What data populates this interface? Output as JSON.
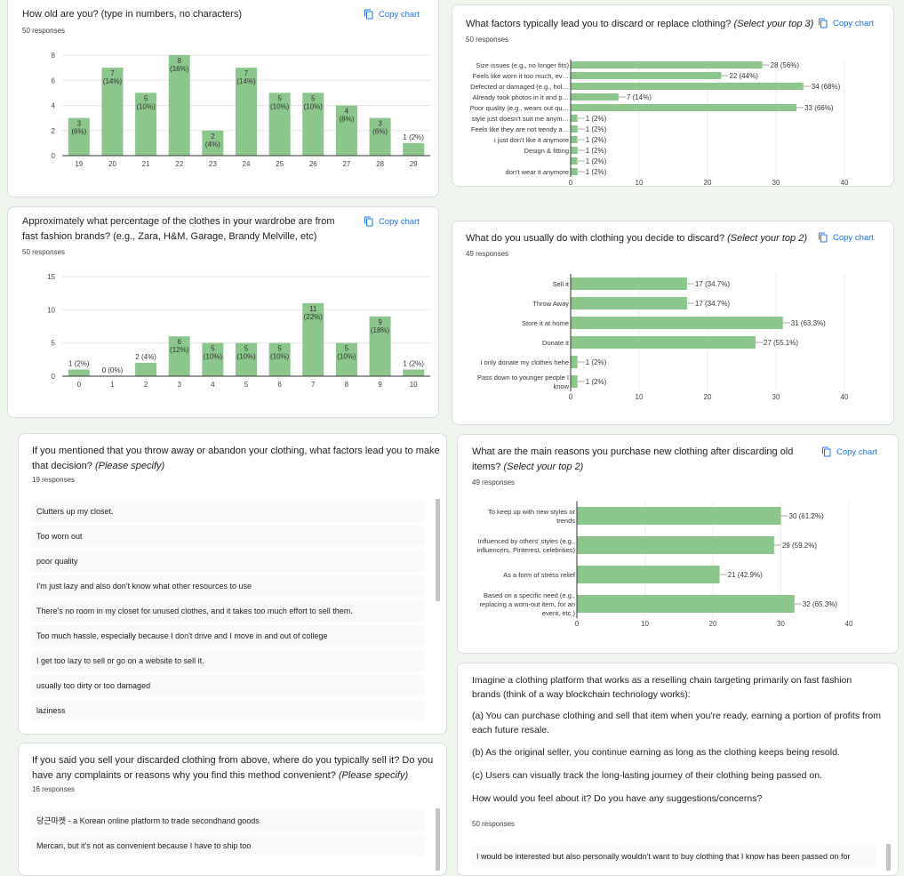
{
  "copy_chart_label": "Copy chart",
  "icons": {
    "copy": "copy-icon"
  },
  "colors": {
    "bar": "#8bc68a",
    "accent": "#1a73e8",
    "background": "#eef5ec"
  },
  "cards": {
    "age": {
      "title": "How old are you? (type in numbers, no characters)",
      "responses": "50 responses"
    },
    "fast_fashion": {
      "title": "Approximately what percentage of the clothes in your wardrobe are from fast fashion brands? (e.g., Zara, H&M, Garage, Brandy Melville, etc)",
      "responses": "50 responses"
    },
    "discard_factors": {
      "title": "What factors typically lead you to discard or replace clothing?",
      "title_em": "(Select your top 3)",
      "responses": "50 responses"
    },
    "discard_action": {
      "title": "What do you usually do with clothing you decide to discard?",
      "title_em": "(Select your top 2)",
      "responses": "49 responses"
    },
    "throw_away": {
      "title": "If you mentioned that you throw away or abandon your clothing, what factors lead you to make that decision?",
      "title_em": "(Please specify)",
      "responses": "19 responses",
      "items": [
        "Clutters up my closet.",
        "Too worn out",
        "poor quality",
        "I'm just lazy and also don't know what other resources to use",
        "There's no room in my closet for unused clothes, and it takes too much effort to sell them.",
        "Too much hassle, especially because I don't drive and I move in and out of college",
        "I get too lazy to sell or go on a website to sell it.",
        "usually too dirty or too damaged",
        "laziness"
      ]
    },
    "purchase_reasons": {
      "title": "What are the main reasons you purchase new clothing after discarding old items?",
      "title_em": "(Select your top 2)",
      "responses": "49 responses"
    },
    "sell_where": {
      "title": "If you said you sell your discarded clothing from above, where do you typically sell it? Do you have any complaints or reasons why you find this method convenient?",
      "title_em": "(Please specify)",
      "responses": "16 responses",
      "items": [
        "당근마켓 - a Korean online platform to trade secondhand goods",
        "Mercari, but it's not as convenient because I have to ship too"
      ]
    },
    "platform": {
      "intro": "Imagine a clothing platform that works as a reselling chain targeting primarily on fast fashion brands (think of a way blockchain technology works):",
      "a": "(a) You can purchase clothing and sell that item when you're ready, earning a portion of profits from each future resale.",
      "b": "(b) As the original seller, you continue earning as long as the clothing keeps being resold.",
      "c": "(c) Users can visually track the long-lasting journey of their clothing being passed on.",
      "question": "How would you feel about it? Do you have any suggestions/concerns?",
      "responses": "50 responses",
      "items": [
        "I would be interested but also personally wouldn't want to buy clothing that I know has been passed on for"
      ]
    }
  },
  "chart_data": [
    {
      "id": "age",
      "type": "bar",
      "categories": [
        "19",
        "20",
        "21",
        "22",
        "23",
        "24",
        "25",
        "26",
        "27",
        "28",
        "29"
      ],
      "values": [
        3,
        7,
        5,
        8,
        2,
        7,
        5,
        5,
        4,
        3,
        1
      ],
      "percents": [
        "6%",
        "14%",
        "10%",
        "16%",
        "4%",
        "14%",
        "10%",
        "10%",
        "8%",
        "6%",
        "2%"
      ],
      "ylim": [
        0,
        8
      ],
      "yticks": [
        0,
        2,
        4,
        6,
        8
      ],
      "grid": true
    },
    {
      "id": "fast_fashion",
      "type": "bar",
      "categories": [
        "0",
        "1",
        "2",
        "3",
        "4",
        "5",
        "6",
        "7",
        "8",
        "9",
        "10"
      ],
      "values": [
        1,
        0,
        2,
        6,
        5,
        5,
        5,
        11,
        5,
        9,
        1
      ],
      "percents": [
        "2%",
        "0%",
        "4%",
        "12%",
        "10%",
        "10%",
        "10%",
        "22%",
        "10%",
        "18%",
        "2%"
      ],
      "ylim": [
        0,
        15
      ],
      "yticks": [
        0,
        5,
        10,
        15
      ],
      "grid": true
    },
    {
      "id": "discard_factors",
      "type": "bar",
      "orientation": "horizontal",
      "categories": [
        "Size issues (e.g., no longer fits)",
        "Feels like worn it too much, ev…",
        "Defected or damaged (e.g., hol…",
        "Already took photos in it and p…",
        "Poor quality (e.g., wears out qu…",
        "style just doesn't suit me anym…",
        "Feels like they are not trendy a…",
        "i just don't like it anymore",
        "Design & fitting",
        "",
        "don't wear it anymore"
      ],
      "values": [
        28,
        22,
        34,
        7,
        33,
        1,
        1,
        1,
        1,
        1,
        1
      ],
      "percents": [
        "56%",
        "44%",
        "68%",
        "14%",
        "66%",
        "2%",
        "2%",
        "2%",
        "2%",
        "2%",
        "2%"
      ],
      "xlim": [
        0,
        40
      ],
      "xticks": [
        0,
        10,
        20,
        30,
        40
      ],
      "grid": true
    },
    {
      "id": "discard_action",
      "type": "bar",
      "orientation": "horizontal",
      "categories": [
        "Sell it",
        "Throw Away",
        "Store it at home",
        "Donate it",
        "i only donate my clothes hehe",
        "Pass down to younger people I\nknow"
      ],
      "values": [
        17,
        17,
        31,
        27,
        1,
        1
      ],
      "percents": [
        "34.7%",
        "34.7%",
        "63.3%",
        "55.1%",
        "2%",
        "2%"
      ],
      "xlim": [
        0,
        40
      ],
      "xticks": [
        0,
        10,
        20,
        30,
        40
      ],
      "grid": true
    },
    {
      "id": "purchase_reasons",
      "type": "bar",
      "orientation": "horizontal",
      "categories": [
        "To keep up with new styles or\ntrends",
        "Influenced by others' styles (e.g.,\ninfluencers, Pinterest, celebrities)",
        "As a form of stress relief",
        "Based on a specific need (e.g.,\nreplacing a worn-out item, for an\nevent, etc.)"
      ],
      "values": [
        30,
        29,
        21,
        32
      ],
      "percents": [
        "61.2%",
        "59.2%",
        "42.9%",
        "65.3%"
      ],
      "xlim": [
        0,
        40
      ],
      "xticks": [
        0,
        10,
        20,
        30,
        40
      ],
      "grid": true
    }
  ]
}
